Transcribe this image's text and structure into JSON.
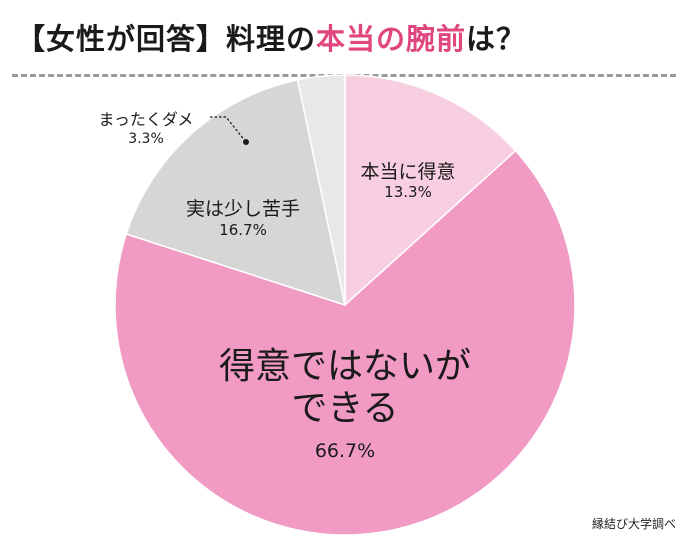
{
  "title": {
    "prefix": "【女性が回答】料理の",
    "highlight": "本当の腕前",
    "suffix": "は？"
  },
  "colors": {
    "accent": "#e0477f",
    "slice_great": "#f8cfe1",
    "slice_ok": "#f09ac4",
    "slice_weak": "#d6d6d6",
    "slice_bad": "#e8e8e8"
  },
  "chart_data": {
    "type": "pie",
    "start": "12 o'clock",
    "direction": "clockwise",
    "slices": [
      {
        "label": "本当に得意",
        "value": 13.3,
        "display": "13.3%"
      },
      {
        "label": "得意ではないができる",
        "label_lines": [
          "得意ではないが",
          "できる"
        ],
        "value": 66.7,
        "display": "66.7%"
      },
      {
        "label": "実は少し苦手",
        "value": 16.7,
        "display": "16.7%"
      },
      {
        "label": "まったくダメ",
        "value": 3.3,
        "display": "3.3%"
      }
    ]
  },
  "source": "縁結び大学調べ"
}
